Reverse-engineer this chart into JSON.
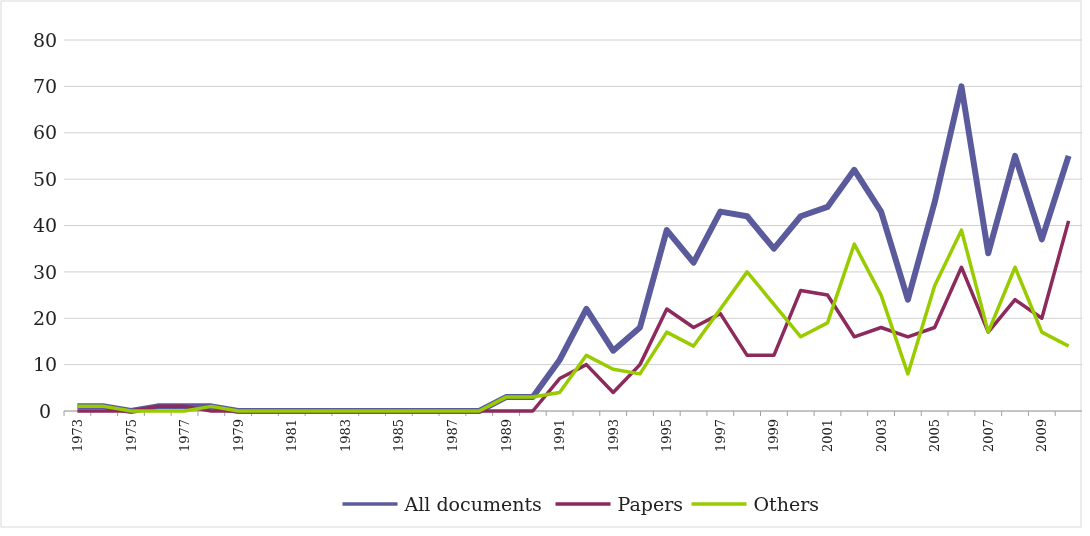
{
  "chart_data": {
    "type": "line",
    "categories": [
      "1973",
      null,
      "1975",
      null,
      "1977",
      null,
      "1979",
      null,
      "1981",
      null,
      "1983",
      null,
      "1985",
      null,
      "1987",
      null,
      "1989",
      null,
      "1991",
      null,
      "1993",
      null,
      "1995",
      null,
      "1997",
      null,
      "1999",
      null,
      "2001",
      null,
      "2003",
      null,
      "2005",
      null,
      "2007",
      null,
      "2009",
      null
    ],
    "series": [
      {
        "name": "All documents",
        "color": "#5a5a9c",
        "values": [
          1,
          1,
          0,
          1,
          1,
          1,
          0,
          0,
          0,
          0,
          0,
          0,
          0,
          0,
          0,
          0,
          3,
          3,
          11,
          22,
          13,
          18,
          39,
          32,
          43,
          42,
          35,
          42,
          44,
          52,
          43,
          24,
          45,
          70,
          34,
          55,
          37,
          55
        ]
      },
      {
        "name": "Papers",
        "color": "#8c2a5c",
        "values": [
          0,
          0,
          0,
          1,
          1,
          0,
          0,
          0,
          0,
          0,
          0,
          0,
          0,
          0,
          0,
          0,
          0,
          0,
          7,
          10,
          4,
          10,
          22,
          18,
          21,
          12,
          12,
          26,
          25,
          16,
          18,
          16,
          18,
          31,
          17,
          24,
          20,
          41
        ]
      },
      {
        "name": "Others",
        "color": "#99cc00",
        "values": [
          1,
          1,
          0,
          0,
          0,
          1,
          0,
          0,
          0,
          0,
          0,
          0,
          0,
          0,
          0,
          0,
          3,
          3,
          4,
          12,
          9,
          8,
          17,
          14,
          22,
          30,
          23,
          16,
          19,
          36,
          25,
          8,
          27,
          39,
          17,
          31,
          17,
          14
        ]
      }
    ],
    "ylim": [
      0,
      80
    ],
    "yticks": [
      0,
      10,
      20,
      30,
      40,
      50,
      60,
      70,
      80
    ],
    "grid": "y",
    "legend": "bottom",
    "line_style": "solid",
    "marker": "none"
  }
}
